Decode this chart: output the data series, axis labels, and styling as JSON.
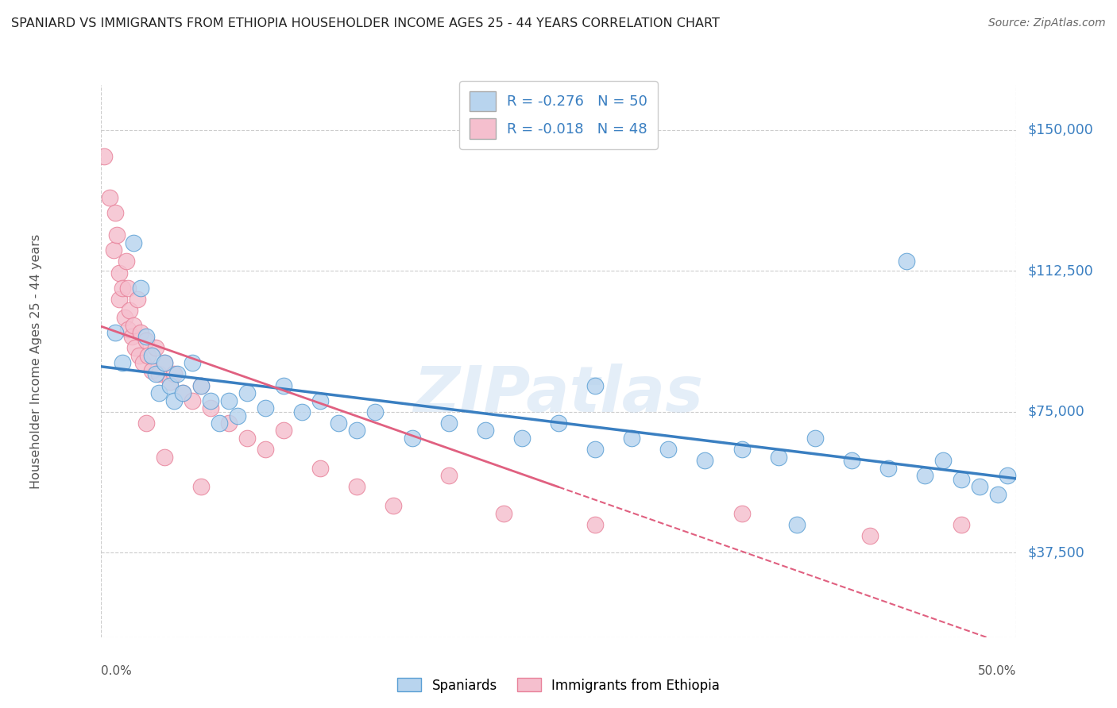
{
  "title": "SPANIARD VS IMMIGRANTS FROM ETHIOPIA HOUSEHOLDER INCOME AGES 25 - 44 YEARS CORRELATION CHART",
  "source": "Source: ZipAtlas.com",
  "ylabel": "Householder Income Ages 25 - 44 years",
  "y_tick_labels": [
    "$37,500",
    "$75,000",
    "$112,500",
    "$150,000"
  ],
  "y_tick_values": [
    37500,
    75000,
    112500,
    150000
  ],
  "xmin": 0.0,
  "xmax": 0.5,
  "ymin": 15000,
  "ymax": 162000,
  "legend_R_blue": "R = -0.276",
  "legend_N_blue": "N = 50",
  "legend_R_pink": "R = -0.018",
  "legend_N_pink": "N = 48",
  "blue_fill": "#b8d4ee",
  "pink_fill": "#f5bfce",
  "blue_edge": "#5a9fd4",
  "pink_edge": "#e8829a",
  "blue_line": "#3a7fc1",
  "pink_line": "#e06080",
  "watermark": "ZIPatlas",
  "watermark_color": "#c5daf0",
  "legend_label_blue": "Spaniards",
  "legend_label_pink": "Immigrants from Ethiopia",
  "blue_scatter_x": [
    0.008,
    0.012,
    0.018,
    0.022,
    0.025,
    0.028,
    0.03,
    0.032,
    0.035,
    0.038,
    0.04,
    0.042,
    0.045,
    0.05,
    0.055,
    0.06,
    0.065,
    0.07,
    0.075,
    0.08,
    0.09,
    0.1,
    0.11,
    0.12,
    0.13,
    0.14,
    0.15,
    0.17,
    0.19,
    0.21,
    0.23,
    0.25,
    0.27,
    0.29,
    0.31,
    0.33,
    0.35,
    0.37,
    0.39,
    0.41,
    0.43,
    0.45,
    0.46,
    0.47,
    0.48,
    0.49,
    0.495,
    0.27,
    0.38,
    0.44
  ],
  "blue_scatter_y": [
    96000,
    88000,
    120000,
    108000,
    95000,
    90000,
    85000,
    80000,
    88000,
    82000,
    78000,
    85000,
    80000,
    88000,
    82000,
    78000,
    72000,
    78000,
    74000,
    80000,
    76000,
    82000,
    75000,
    78000,
    72000,
    70000,
    75000,
    68000,
    72000,
    70000,
    68000,
    72000,
    65000,
    68000,
    65000,
    62000,
    65000,
    63000,
    68000,
    62000,
    60000,
    58000,
    62000,
    57000,
    55000,
    53000,
    58000,
    82000,
    45000,
    115000
  ],
  "blue_scatter_sizes": [
    200,
    200,
    200,
    200,
    200,
    200,
    200,
    200,
    200,
    200,
    200,
    200,
    200,
    200,
    200,
    200,
    200,
    200,
    200,
    200,
    200,
    200,
    200,
    200,
    200,
    200,
    200,
    200,
    200,
    200,
    200,
    200,
    200,
    200,
    200,
    200,
    200,
    200,
    200,
    200,
    200,
    200,
    200,
    200,
    200,
    200,
    200,
    200,
    200,
    200
  ],
  "pink_scatter_x": [
    0.002,
    0.005,
    0.007,
    0.008,
    0.009,
    0.01,
    0.01,
    0.012,
    0.013,
    0.014,
    0.015,
    0.015,
    0.016,
    0.017,
    0.018,
    0.019,
    0.02,
    0.021,
    0.022,
    0.023,
    0.025,
    0.026,
    0.028,
    0.03,
    0.032,
    0.035,
    0.038,
    0.04,
    0.045,
    0.05,
    0.055,
    0.06,
    0.07,
    0.08,
    0.09,
    0.1,
    0.12,
    0.14,
    0.16,
    0.19,
    0.22,
    0.27,
    0.35,
    0.42,
    0.47,
    0.025,
    0.035,
    0.055
  ],
  "pink_scatter_y": [
    143000,
    132000,
    118000,
    128000,
    122000,
    112000,
    105000,
    108000,
    100000,
    115000,
    97000,
    108000,
    102000,
    95000,
    98000,
    92000,
    105000,
    90000,
    96000,
    88000,
    94000,
    90000,
    86000,
    92000,
    85000,
    88000,
    83000,
    85000,
    80000,
    78000,
    82000,
    76000,
    72000,
    68000,
    65000,
    70000,
    60000,
    55000,
    50000,
    58000,
    48000,
    45000,
    48000,
    42000,
    45000,
    72000,
    63000,
    55000
  ],
  "dot_size": 220
}
